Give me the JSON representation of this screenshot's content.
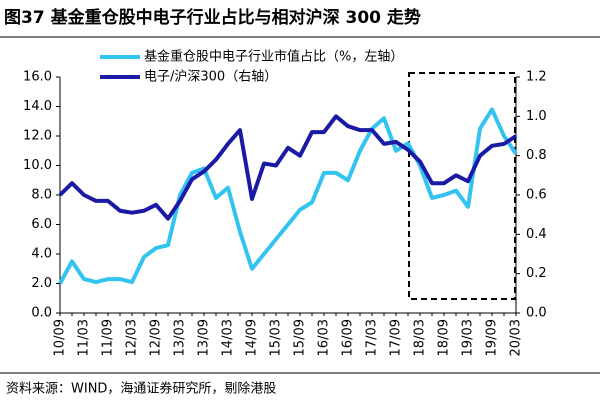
{
  "chart_data": {
    "type": "line",
    "title": "图37 基金重仓股中电子行业占比与相对沪深 300 走势",
    "source": "资料来源：WIND，海通证券研究所，剔除港股",
    "categories": [
      "10/09",
      null,
      "11/03",
      null,
      "11/09",
      null,
      "12/03",
      null,
      "12/09",
      null,
      "13/03",
      null,
      "13/09",
      null,
      "14/03",
      null,
      "14/09",
      null,
      "15/03",
      null,
      "15/09",
      null,
      "16/03",
      null,
      "16/09",
      null,
      "17/03",
      null,
      "17/09",
      null,
      "18/03",
      null,
      "18/09",
      null,
      "19/03",
      null,
      "19/09",
      null,
      "20/03"
    ],
    "series": [
      {
        "name": "基金重仓股中电子行业市值占比（%，左轴）",
        "color": "#33c3f0",
        "values": [
          2.0,
          3.5,
          2.3,
          2.1,
          2.3,
          2.3,
          2.1,
          3.8,
          4.4,
          4.6,
          8.0,
          9.5,
          9.8,
          7.8,
          8.5,
          5.5,
          3.0,
          4.0,
          5.0,
          6.0,
          7.0,
          7.5,
          9.5,
          9.5,
          9.0,
          11.0,
          12.5,
          13.2,
          11.0,
          11.5,
          10.0,
          7.8,
          8.0,
          8.3,
          7.2,
          12.5,
          13.8,
          12.0,
          10.8
        ]
      },
      {
        "name": "电子/沪深300（右轴）",
        "color": "#1a1aa6",
        "axis": "y2",
        "values": [
          0.6,
          0.66,
          0.6,
          0.57,
          0.57,
          0.52,
          0.51,
          0.52,
          0.55,
          0.48,
          0.57,
          0.68,
          0.72,
          0.78,
          0.86,
          0.93,
          0.58,
          0.76,
          0.75,
          0.84,
          0.8,
          0.92,
          0.92,
          1.0,
          0.95,
          0.93,
          0.93,
          0.86,
          0.87,
          0.83,
          0.77,
          0.66,
          0.66,
          0.7,
          0.67,
          0.8,
          0.85,
          0.86,
          0.9
        ]
      }
    ],
    "ylim": [
      0,
      16
    ],
    "yticks": [
      {
        "value": 0,
        "label": "0.0"
      },
      {
        "value": 2,
        "label": "2.0"
      },
      {
        "value": 4,
        "label": "4.0"
      },
      {
        "value": 6,
        "label": "6.0"
      },
      {
        "value": 8,
        "label": "8.0"
      },
      {
        "value": 10,
        "label": "10.0"
      },
      {
        "value": 12,
        "label": "12.0"
      },
      {
        "value": 14,
        "label": "14.0"
      },
      {
        "value": 16,
        "label": "16.0"
      }
    ],
    "y2lim": [
      0,
      1.2
    ],
    "y2ticks": [
      {
        "value": 0,
        "label": "0.0"
      },
      0.2,
      0.4,
      0.6,
      0.8,
      {
        "value": 1,
        "label": "1.0"
      },
      1.2
    ],
    "legend": "top"
  }
}
